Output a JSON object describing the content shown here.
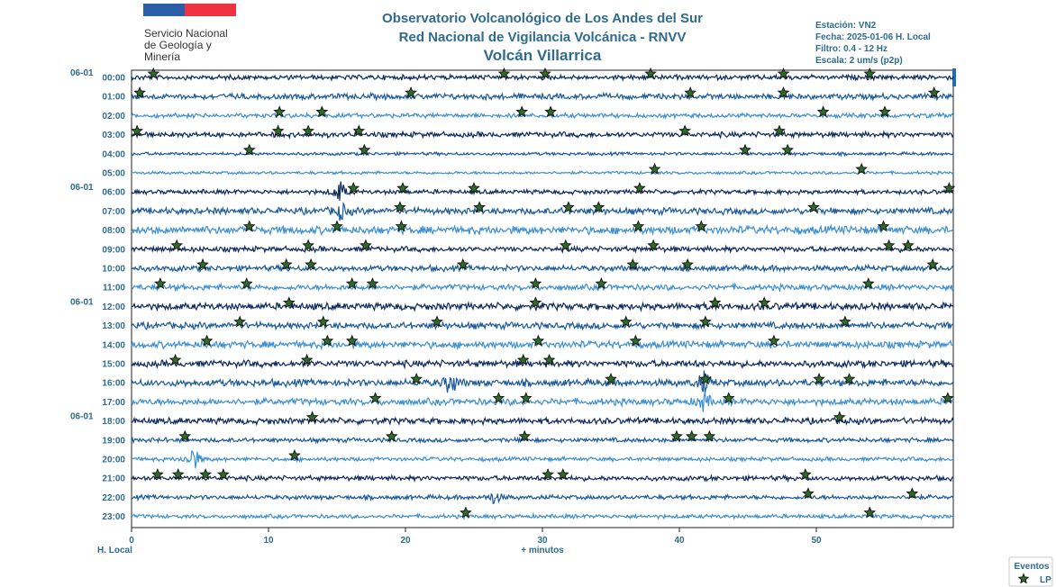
{
  "header": {
    "org_lines": [
      "Servicio Nacional",
      "de Geología y",
      "Minería"
    ],
    "title_lines": [
      "Observatorio Volcanológico de Los Andes del Sur",
      "Red Nacional de Vigilancia Volcánica - RNVV",
      "Volcán Villarrica"
    ],
    "info_lines": [
      "Estación: VN2",
      "Fecha: 2025-01-06 H. Local",
      "Filtro: 0.4 - 12 Hz",
      "Escala: 2 um/s (p2p)"
    ]
  },
  "colors": {
    "logo_blue": "#2a5ea8",
    "logo_red": "#ef3340",
    "text_blue": "#2e6b8f",
    "trace_dark": "#0d2a5c",
    "trace_mid": "#1b5a9a",
    "trace_light": "#3c8fd0",
    "star_fill": "#2f6a2a"
  },
  "chart_data": {
    "type": "scatter",
    "title": "Volcán Villarrica",
    "xlabel": "+ minutos",
    "ylabel": "H. Local",
    "xlim": [
      0,
      60
    ],
    "xticks": [
      0,
      10,
      20,
      30,
      40,
      50
    ],
    "rows": [
      "00:00",
      "01:00",
      "02:00",
      "03:00",
      "04:00",
      "05:00",
      "06:00",
      "07:00",
      "08:00",
      "09:00",
      "10:00",
      "11:00",
      "12:00",
      "13:00",
      "14:00",
      "15:00",
      "16:00",
      "17:00",
      "18:00",
      "19:00",
      "20:00",
      "21:00",
      "22:00",
      "23:00"
    ],
    "date_labels": [
      {
        "row": 0,
        "text": "06-01"
      },
      {
        "row": 6,
        "text": "06-01"
      },
      {
        "row": 12,
        "text": "06-01"
      },
      {
        "row": 18,
        "text": "06-01"
      }
    ],
    "legend": {
      "title": "Eventos",
      "label": "LP",
      "position": "bottom-right"
    },
    "events": [
      [
        1.6,
        27.2,
        30.2,
        37.9,
        47.6,
        53.9
      ],
      [
        0.6,
        20.4,
        40.8,
        47.6,
        58.6
      ],
      [
        10.8,
        13.9,
        28.5,
        30.6,
        50.5,
        55.0
      ],
      [
        0.4,
        10.7,
        12.9,
        16.6,
        40.4,
        47.3
      ],
      [
        8.6,
        17.0,
        44.8,
        47.9
      ],
      [
        38.2,
        53.3
      ],
      [
        16.2,
        19.8,
        25.0,
        37.1,
        59.7
      ],
      [
        19.6,
        25.4,
        31.9,
        34.1,
        49.8
      ],
      [
        8.6,
        15.0,
        19.7,
        37.0,
        41.6,
        54.9
      ],
      [
        3.3,
        12.9,
        17.1,
        31.7,
        38.1,
        55.3,
        56.7
      ],
      [
        5.2,
        11.3,
        13.1,
        24.2,
        36.6,
        40.6,
        58.5
      ],
      [
        2.1,
        8.4,
        16.1,
        17.6,
        29.5,
        34.3,
        53.8
      ],
      [
        11.5,
        29.5,
        42.6,
        46.2
      ],
      [
        7.9,
        14.0,
        22.3,
        36.1,
        41.9,
        52.1
      ],
      [
        5.5,
        14.3,
        16.1,
        29.7,
        36.8,
        46.9
      ],
      [
        3.2,
        12.8,
        28.6,
        30.5
      ],
      [
        20.8,
        35.0,
        41.9,
        50.2,
        52.4
      ],
      [
        17.8,
        26.8,
        28.8,
        43.6,
        59.6
      ],
      [
        13.2,
        51.7
      ],
      [
        3.9,
        19.0,
        28.7,
        39.8,
        40.9,
        42.2
      ],
      [
        11.9
      ],
      [
        1.9,
        3.4,
        5.4,
        6.7,
        30.4,
        31.5,
        49.2
      ],
      [
        49.4,
        57.0
      ],
      [
        24.4,
        53.9
      ]
    ],
    "bursts": [
      {
        "row": 6,
        "x": 15.2,
        "amp": 3.0
      },
      {
        "row": 7,
        "x": 15.3,
        "amp": 2.2
      },
      {
        "row": 16,
        "x": 23.3,
        "amp": 3.4
      },
      {
        "row": 16,
        "x": 41.8,
        "amp": 3.0
      },
      {
        "row": 17,
        "x": 41.8,
        "amp": 2.6
      },
      {
        "row": 20,
        "x": 4.5,
        "amp": 3.6
      },
      {
        "row": 22,
        "x": 26.5,
        "amp": 1.8
      }
    ]
  }
}
